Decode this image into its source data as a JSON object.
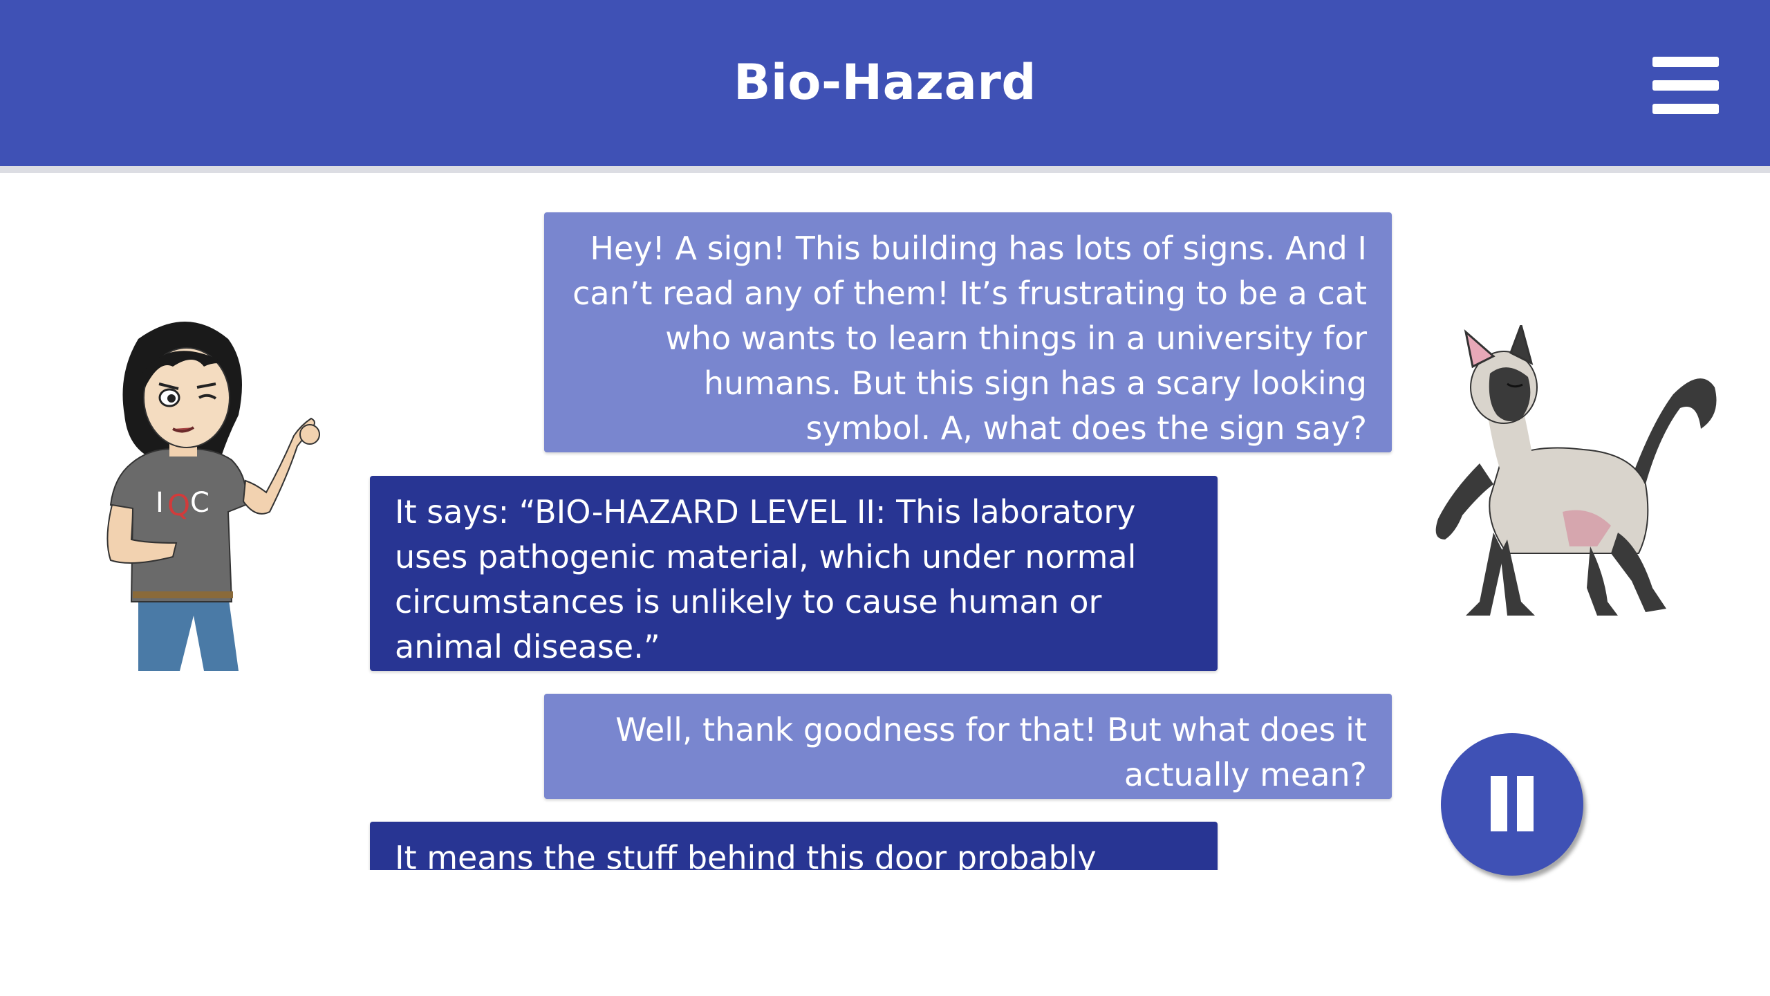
{
  "header": {
    "title": "Bio-Hazard",
    "menu_icon": "hamburger-menu-icon",
    "background_color": "#3f51b5"
  },
  "conversation": {
    "messages": [
      {
        "speaker": "cat",
        "text": "Hey! A sign! This building has lots of signs. And I can’t read any of them! It’s frustrating to be a cat who wants to learn things in a university for humans. But this sign has a scary looking symbol. A, what does the sign say?"
      },
      {
        "speaker": "human",
        "text": "It says: “BIO-HAZARD LEVEL II: This laboratory uses pathogenic material, which under normal circumstances is unlikely to cause human or animal disease.”"
      },
      {
        "speaker": "cat",
        "text": "Well, thank goodness for that! But what does it actually mean?"
      },
      {
        "speaker": "human",
        "text": "It means the stuff behind this door probably won’t"
      }
    ],
    "cat_bubble_color": "#7986cf",
    "human_bubble_color": "#283593"
  },
  "avatars": {
    "left_icon": "girl-character-icon",
    "right_icon": "siamese-cat-icon",
    "shirt_text": "IQC"
  },
  "controls": {
    "pause_icon": "pause-icon"
  }
}
